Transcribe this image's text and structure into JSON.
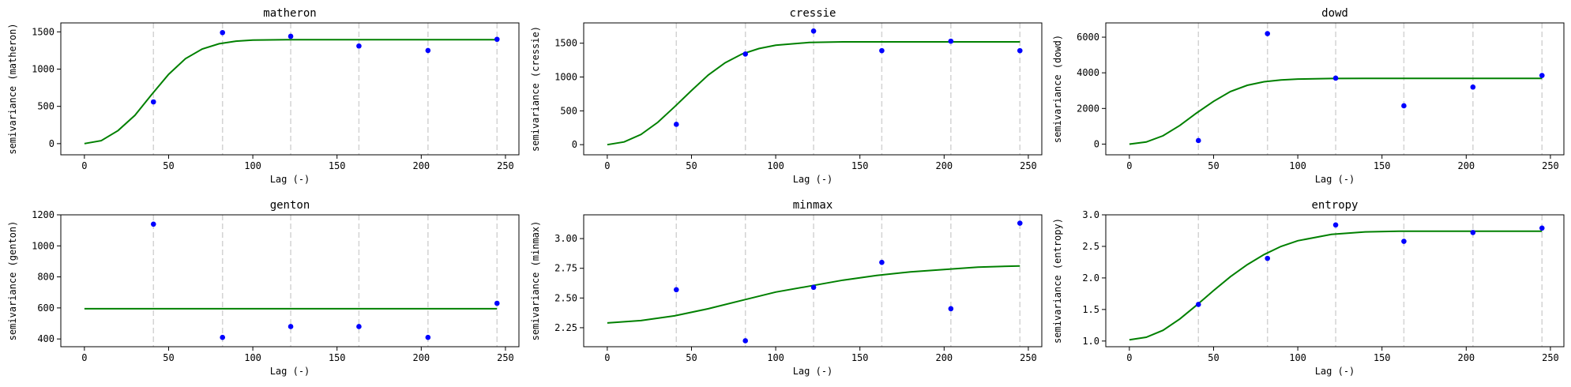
{
  "chart_data": [
    {
      "type": "scatter",
      "title": "matheron",
      "xlabel": "Lag (-)",
      "ylabel": "semivariance (matheron)",
      "xlim": [
        -14,
        258
      ],
      "ylim": [
        -150,
        1620
      ],
      "xticks": [
        0,
        50,
        100,
        150,
        200,
        250
      ],
      "xtick_labels": [
        "0",
        "50",
        "100",
        "150",
        "200",
        "250"
      ],
      "yticks": [
        0,
        500,
        1000,
        1500
      ],
      "ytick_labels": [
        "0",
        "500",
        "1000",
        "1500"
      ],
      "bins": [
        41,
        82,
        122.5,
        163,
        204,
        245
      ],
      "points": {
        "x": [
          41,
          82,
          122.5,
          163,
          204,
          245
        ],
        "y": [
          560,
          1490,
          1440,
          1310,
          1250,
          1400
        ]
      },
      "model": {
        "x": [
          0,
          10,
          20,
          30,
          40,
          50,
          60,
          70,
          80,
          90,
          100,
          120,
          140,
          160,
          180,
          200,
          220,
          245
        ],
        "y": [
          0,
          40,
          175,
          380,
          660,
          930,
          1140,
          1270,
          1340,
          1375,
          1390,
          1395,
          1395,
          1395,
          1395,
          1395,
          1395,
          1395
        ]
      },
      "grid": false,
      "colors": {
        "points": "#0000ff",
        "model": "#008000",
        "bins": "#d3d3d3"
      }
    },
    {
      "type": "scatter",
      "title": "cressie",
      "xlabel": "Lag (-)",
      "ylabel": "semivariance (cressie)",
      "xlim": [
        -14,
        258
      ],
      "ylim": [
        -150,
        1800
      ],
      "xticks": [
        0,
        50,
        100,
        150,
        200,
        250
      ],
      "xtick_labels": [
        "0",
        "50",
        "100",
        "150",
        "200",
        "250"
      ],
      "yticks": [
        0,
        500,
        1000,
        1500
      ],
      "ytick_labels": [
        "0",
        "500",
        "1000",
        "1500"
      ],
      "bins": [
        41,
        82,
        122.5,
        163,
        204,
        245
      ],
      "points": {
        "x": [
          41,
          82,
          122.5,
          163,
          204,
          245
        ],
        "y": [
          300,
          1340,
          1680,
          1390,
          1530,
          1390
        ]
      },
      "model": {
        "x": [
          0,
          10,
          20,
          30,
          40,
          50,
          60,
          70,
          80,
          90,
          100,
          120,
          140,
          160,
          180,
          200,
          220,
          245
        ],
        "y": [
          0,
          40,
          150,
          330,
          560,
          800,
          1030,
          1210,
          1340,
          1420,
          1470,
          1510,
          1520,
          1520,
          1520,
          1520,
          1520,
          1520
        ]
      },
      "grid": false,
      "colors": {
        "points": "#0000ff",
        "model": "#008000",
        "bins": "#d3d3d3"
      }
    },
    {
      "type": "scatter",
      "title": "dowd",
      "xlabel": "Lag (-)",
      "ylabel": "semivariance (dowd)",
      "xlim": [
        -14,
        258
      ],
      "ylim": [
        -600,
        6800
      ],
      "xticks": [
        0,
        50,
        100,
        150,
        200,
        250
      ],
      "xtick_labels": [
        "0",
        "50",
        "100",
        "150",
        "200",
        "250"
      ],
      "yticks": [
        0,
        2000,
        4000,
        6000
      ],
      "ytick_labels": [
        "0",
        "2000",
        "4000",
        "6000"
      ],
      "bins": [
        41,
        82,
        122.5,
        163,
        204,
        245
      ],
      "points": {
        "x": [
          41,
          82,
          122.5,
          163,
          204,
          245
        ],
        "y": [
          200,
          6200,
          3700,
          2150,
          3200,
          3850
        ]
      },
      "model": {
        "x": [
          0,
          10,
          20,
          30,
          40,
          50,
          60,
          70,
          80,
          90,
          100,
          120,
          140,
          160,
          180,
          200,
          220,
          245
        ],
        "y": [
          0,
          120,
          470,
          1050,
          1750,
          2400,
          2950,
          3300,
          3500,
          3600,
          3650,
          3680,
          3690,
          3690,
          3690,
          3690,
          3690,
          3690
        ]
      },
      "grid": false,
      "colors": {
        "points": "#0000ff",
        "model": "#008000",
        "bins": "#d3d3d3"
      }
    },
    {
      "type": "scatter",
      "title": "genton",
      "xlabel": "Lag (-)",
      "ylabel": "semivariance (genton)",
      "xlim": [
        -14,
        258
      ],
      "ylim": [
        350,
        1200
      ],
      "xticks": [
        0,
        50,
        100,
        150,
        200,
        250
      ],
      "xtick_labels": [
        "0",
        "50",
        "100",
        "150",
        "200",
        "250"
      ],
      "yticks": [
        400,
        600,
        800,
        1000,
        1200
      ],
      "ytick_labels": [
        "400",
        "600",
        "800",
        "1000",
        "1200"
      ],
      "bins": [
        41,
        82,
        122.5,
        163,
        204,
        245
      ],
      "points": {
        "x": [
          41,
          82,
          122.5,
          163,
          204,
          245
        ],
        "y": [
          1140,
          410,
          480,
          480,
          410,
          630
        ]
      },
      "model": {
        "x": [
          0,
          245
        ],
        "y": [
          595,
          595
        ]
      },
      "grid": false,
      "colors": {
        "points": "#0000ff",
        "model": "#008000",
        "bins": "#d3d3d3"
      }
    },
    {
      "type": "scatter",
      "title": "minmax",
      "xlabel": "Lag (-)",
      "ylabel": "semivariance (minmax)",
      "xlim": [
        -14,
        258
      ],
      "ylim": [
        2.09,
        3.2
      ],
      "xticks": [
        0,
        50,
        100,
        150,
        200,
        250
      ],
      "xtick_labels": [
        "0",
        "50",
        "100",
        "150",
        "200",
        "250"
      ],
      "yticks": [
        2.25,
        2.5,
        2.75,
        3.0
      ],
      "ytick_labels": [
        "2.25",
        "2.50",
        "2.75",
        "3.00"
      ],
      "bins": [
        41,
        82,
        122.5,
        163,
        204,
        245
      ],
      "points": {
        "x": [
          41,
          82,
          122.5,
          163,
          204,
          245
        ],
        "y": [
          2.57,
          2.14,
          2.59,
          2.8,
          2.41,
          3.13
        ]
      },
      "model": {
        "x": [
          0,
          20,
          40,
          60,
          80,
          100,
          120,
          140,
          160,
          180,
          200,
          220,
          245
        ],
        "y": [
          2.29,
          2.31,
          2.35,
          2.41,
          2.48,
          2.55,
          2.6,
          2.65,
          2.69,
          2.72,
          2.74,
          2.76,
          2.77
        ]
      },
      "grid": false,
      "colors": {
        "points": "#0000ff",
        "model": "#008000",
        "bins": "#d3d3d3"
      }
    },
    {
      "type": "scatter",
      "title": "entropy",
      "xlabel": "Lag (-)",
      "ylabel": "semivariance (entropy)",
      "xlim": [
        -14,
        258
      ],
      "ylim": [
        0.91,
        3.0
      ],
      "xticks": [
        0,
        50,
        100,
        150,
        200,
        250
      ],
      "xtick_labels": [
        "0",
        "50",
        "100",
        "150",
        "200",
        "250"
      ],
      "yticks": [
        1.0,
        1.5,
        2.0,
        2.5,
        3.0
      ],
      "ytick_labels": [
        "1.0",
        "1.5",
        "2.0",
        "2.5",
        "3.0"
      ],
      "bins": [
        41,
        82,
        122.5,
        163,
        204,
        245
      ],
      "points": {
        "x": [
          41,
          82,
          122.5,
          163,
          204,
          245
        ],
        "y": [
          1.58,
          2.31,
          2.84,
          2.58,
          2.72,
          2.79
        ]
      },
      "model": {
        "x": [
          0,
          10,
          20,
          30,
          40,
          50,
          60,
          70,
          80,
          90,
          100,
          120,
          140,
          160,
          180,
          200,
          220,
          245
        ],
        "y": [
          1.02,
          1.06,
          1.17,
          1.35,
          1.57,
          1.8,
          2.02,
          2.21,
          2.37,
          2.5,
          2.59,
          2.69,
          2.73,
          2.74,
          2.74,
          2.74,
          2.74,
          2.74
        ]
      },
      "grid": false,
      "colors": {
        "points": "#0000ff",
        "model": "#008000",
        "bins": "#d3d3d3"
      }
    }
  ]
}
